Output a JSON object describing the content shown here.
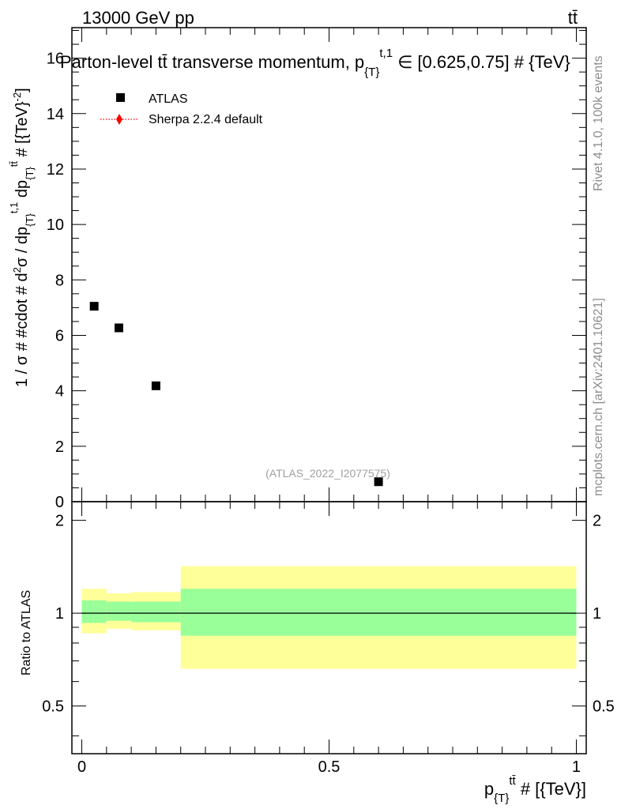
{
  "header": {
    "left": "13000 GeV pp",
    "right": "tt̄"
  },
  "side_labels": {
    "rivet": "Rivet 4.1.0,  100k events",
    "mcplots": "mcplots.cern.ch [arXiv:2401.10621]"
  },
  "chart_data": [
    {
      "panel": "main",
      "type": "scatter",
      "title": "Parton-level tt̄ transverse momentum, p_{T}^{t,1} ∈ [0.625,0.75] # {TeV}",
      "xlabel": "p_{T}^{tt̄} # [{TeV}]",
      "ylabel": "1 / σ # #cdot # d²σ / dp_{T}^{t,1} dp_{T}^{tt̄} # [{TeV}⁻²]",
      "xlim": [
        -0.02,
        1.02
      ],
      "ylim": [
        0,
        17.1
      ],
      "yticks": [
        0,
        2,
        4,
        6,
        8,
        10,
        12,
        14,
        16
      ],
      "legend_position": "top-left",
      "watermark": "(ATLAS_2022_I2077575)",
      "series": [
        {
          "name": "ATLAS",
          "marker": "square",
          "color": "#000000",
          "points": [
            {
              "x": 0.025,
              "y": 7.05
            },
            {
              "x": 0.075,
              "y": 6.27
            },
            {
              "x": 0.15,
              "y": 4.18
            },
            {
              "x": 0.6,
              "y": 0.72
            }
          ]
        },
        {
          "name": "Sherpa 2.2.4 default",
          "marker": "diamond",
          "line_style": "dotted",
          "color": "#ff0000",
          "points": []
        }
      ]
    },
    {
      "panel": "ratio",
      "type": "area",
      "ylabel": "Ratio to ATLAS",
      "xlim": [
        -0.02,
        1.02
      ],
      "ylim": [
        0.35,
        2.3
      ],
      "yticks": [
        0.5,
        1,
        2
      ],
      "xticks": [
        0,
        0.5,
        1
      ],
      "x_tick_labels": [
        "0",
        "0.5",
        "1"
      ],
      "y_tick_labels": [
        "0.5",
        "1",
        "2"
      ],
      "reference_line": 1,
      "bins": [
        {
          "xlo": 0.0,
          "xhi": 0.05,
          "stat_lo": 0.93,
          "stat_hi": 1.1,
          "tot_lo": 0.86,
          "tot_hi": 1.2
        },
        {
          "xlo": 0.05,
          "xhi": 0.1,
          "stat_lo": 0.945,
          "stat_hi": 1.09,
          "tot_lo": 0.89,
          "tot_hi": 1.16
        },
        {
          "xlo": 0.1,
          "xhi": 0.2,
          "stat_lo": 0.935,
          "stat_hi": 1.09,
          "tot_lo": 0.88,
          "tot_hi": 1.17
        },
        {
          "xlo": 0.2,
          "xhi": 1.0,
          "stat_lo": 0.845,
          "stat_hi": 1.2,
          "tot_lo": 0.66,
          "tot_hi": 1.42
        }
      ],
      "colors": {
        "stat": "#99ff99",
        "total": "#ffff99"
      }
    }
  ]
}
